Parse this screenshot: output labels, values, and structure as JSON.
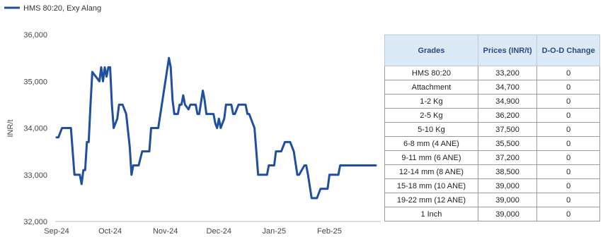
{
  "legend": {
    "label": "HMS 80:20, Exy Alang",
    "color": "#1f4fa0"
  },
  "chart_data": {
    "type": "line",
    "ylabel": "INR/t",
    "ylim": [
      32000,
      36000
    ],
    "y_ticks": [
      "32,000",
      "33,000",
      "34,000",
      "35,000",
      "36,000"
    ],
    "x_ticks": [
      "Sep-24",
      "Oct-24",
      "Nov-24",
      "Dec-24",
      "Jan-25",
      "Feb-25"
    ],
    "grid": false,
    "legend_position": "top-left",
    "series": [
      {
        "name": "HMS 80:20, Exy Alang",
        "color": "#1f4fa0",
        "x": [
          "2024-09-01",
          "2024-09-02",
          "2024-09-04",
          "2024-09-05",
          "2024-09-09",
          "2024-09-11",
          "2024-09-12",
          "2024-09-14",
          "2024-09-15",
          "2024-09-16",
          "2024-09-17",
          "2024-09-18",
          "2024-09-19",
          "2024-09-20",
          "2024-09-21",
          "2024-09-25",
          "2024-09-26",
          "2024-09-27",
          "2024-09-28",
          "2024-09-29",
          "2024-09-30",
          "2024-10-01",
          "2024-10-02",
          "2024-10-03",
          "2024-10-04",
          "2024-10-05",
          "2024-10-06",
          "2024-10-07",
          "2024-10-08",
          "2024-10-10",
          "2024-10-12",
          "2024-10-13",
          "2024-10-14",
          "2024-10-17",
          "2024-10-19",
          "2024-10-20",
          "2024-10-21",
          "2024-10-22",
          "2024-10-23",
          "2024-10-24",
          "2024-10-25",
          "2024-10-28",
          "2024-11-03",
          "2024-11-04",
          "2024-11-05",
          "2024-11-06",
          "2024-11-07",
          "2024-11-08",
          "2024-11-09",
          "2024-11-10",
          "2024-11-11",
          "2024-11-12",
          "2024-11-14",
          "2024-11-15",
          "2024-11-16",
          "2024-11-18",
          "2024-11-19",
          "2024-11-20",
          "2024-11-22",
          "2024-11-23",
          "2024-11-24",
          "2024-11-26",
          "2024-11-28",
          "2024-11-29",
          "2024-11-30",
          "2024-12-01",
          "2024-12-02",
          "2024-12-04",
          "2024-12-05",
          "2024-12-06",
          "2024-12-07",
          "2024-12-08",
          "2024-12-09",
          "2024-12-10",
          "2024-12-12",
          "2024-12-14",
          "2024-12-15",
          "2024-12-16",
          "2024-12-17",
          "2024-12-18",
          "2024-12-21",
          "2024-12-22",
          "2024-12-23",
          "2024-12-25",
          "2024-12-27",
          "2024-12-28",
          "2024-12-29",
          "2024-12-31",
          "2025-01-01",
          "2025-01-02",
          "2025-01-04",
          "2025-01-05",
          "2025-01-07",
          "2025-01-08",
          "2025-01-10",
          "2025-01-12",
          "2025-01-14",
          "2025-01-15",
          "2025-01-18",
          "2025-01-19",
          "2025-01-20",
          "2025-01-22",
          "2025-01-25",
          "2025-01-27",
          "2025-01-30",
          "2025-01-31",
          "2025-02-01",
          "2025-02-03",
          "2025-02-06",
          "2025-02-07",
          "2025-02-08",
          "2025-02-10",
          "2025-02-11",
          "2025-02-12",
          "2025-02-13",
          "2025-02-14",
          "2025-02-15",
          "2025-02-17",
          "2025-02-18",
          "2025-02-19",
          "2025-02-20",
          "2025-02-21",
          "2025-02-22",
          "2025-02-23",
          "2025-02-24",
          "2025-02-26",
          "2025-02-27"
        ],
        "values": [
          33800,
          33800,
          34000,
          34000,
          34000,
          33000,
          33000,
          33000,
          32800,
          33100,
          33100,
          33700,
          33700,
          34500,
          35200,
          35000,
          35300,
          35000,
          35300,
          35100,
          35300,
          35300,
          34500,
          34000,
          34100,
          34200,
          34500,
          34500,
          34500,
          34300,
          33600,
          33000,
          33200,
          33200,
          33500,
          33500,
          33500,
          33500,
          33500,
          34000,
          34000,
          34000,
          35500,
          35300,
          34600,
          34300,
          34300,
          34300,
          34500,
          34500,
          34700,
          34500,
          34400,
          34500,
          34500,
          34500,
          34300,
          34300,
          34800,
          34600,
          34300,
          34300,
          34300,
          34100,
          34000,
          34200,
          34000,
          34200,
          34500,
          34500,
          34500,
          34500,
          34300,
          34300,
          34500,
          34500,
          34500,
          34500,
          34300,
          34300,
          34000,
          33500,
          33000,
          33000,
          33000,
          33000,
          33200,
          33200,
          33200,
          33500,
          33500,
          33500,
          33700,
          33700,
          33700,
          33500,
          33000,
          33000,
          33200,
          33200,
          33000,
          32500,
          32500,
          32700,
          32700,
          32700,
          33000,
          33000,
          33000,
          33200,
          33200,
          33200,
          33200,
          33200,
          33200,
          33200,
          33200,
          33200,
          33200,
          33200,
          33200,
          33200,
          33200,
          33200,
          33200,
          33200,
          33200
        ]
      }
    ]
  },
  "table": {
    "headers": [
      "Grades",
      "Prices (INR/t)",
      "D-O-D Change"
    ],
    "rows": [
      [
        "HMS 80:20",
        "33,200",
        "0"
      ],
      [
        "Attachment",
        "34,700",
        "0"
      ],
      [
        "1-2 Kg",
        "34,900",
        "0"
      ],
      [
        "2-5 Kg",
        "36,200",
        "0"
      ],
      [
        "5-10 Kg",
        "37,500",
        "0"
      ],
      [
        "6-8 mm (4 ANE)",
        "35,500",
        "0"
      ],
      [
        "9-11 mm (6 ANE)",
        "37,200",
        "0"
      ],
      [
        "12-14 mm (8 ANE)",
        "38,500",
        "0"
      ],
      [
        "15-18 mm (10 ANE)",
        "39,000",
        "0"
      ],
      [
        "19-22 mm (12 ANE)",
        "39,000",
        "0"
      ],
      [
        "1 Inch",
        "39,000",
        "0"
      ]
    ]
  }
}
